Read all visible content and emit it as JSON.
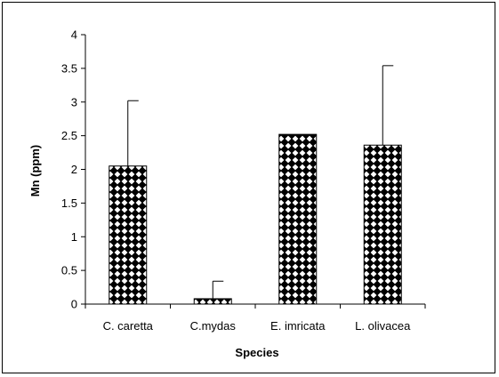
{
  "chart_data": {
    "type": "bar",
    "title": "",
    "xlabel": "Species",
    "ylabel": "Mn (ppm)",
    "categories": [
      "C. caretta",
      "C.mydas",
      "E. imricata",
      "L. olivacea"
    ],
    "values": [
      2.05,
      0.08,
      2.52,
      2.36
    ],
    "error_bars": [
      0.97,
      0.26,
      0.0,
      1.18
    ],
    "ylim": [
      0,
      4
    ],
    "yticks": [
      "0",
      "0.5",
      "1",
      "1.5",
      "2",
      "2.5",
      "3",
      "3.5",
      "4"
    ],
    "grid": false,
    "legend": "none",
    "bar_pattern": "black-white diamond checker"
  }
}
